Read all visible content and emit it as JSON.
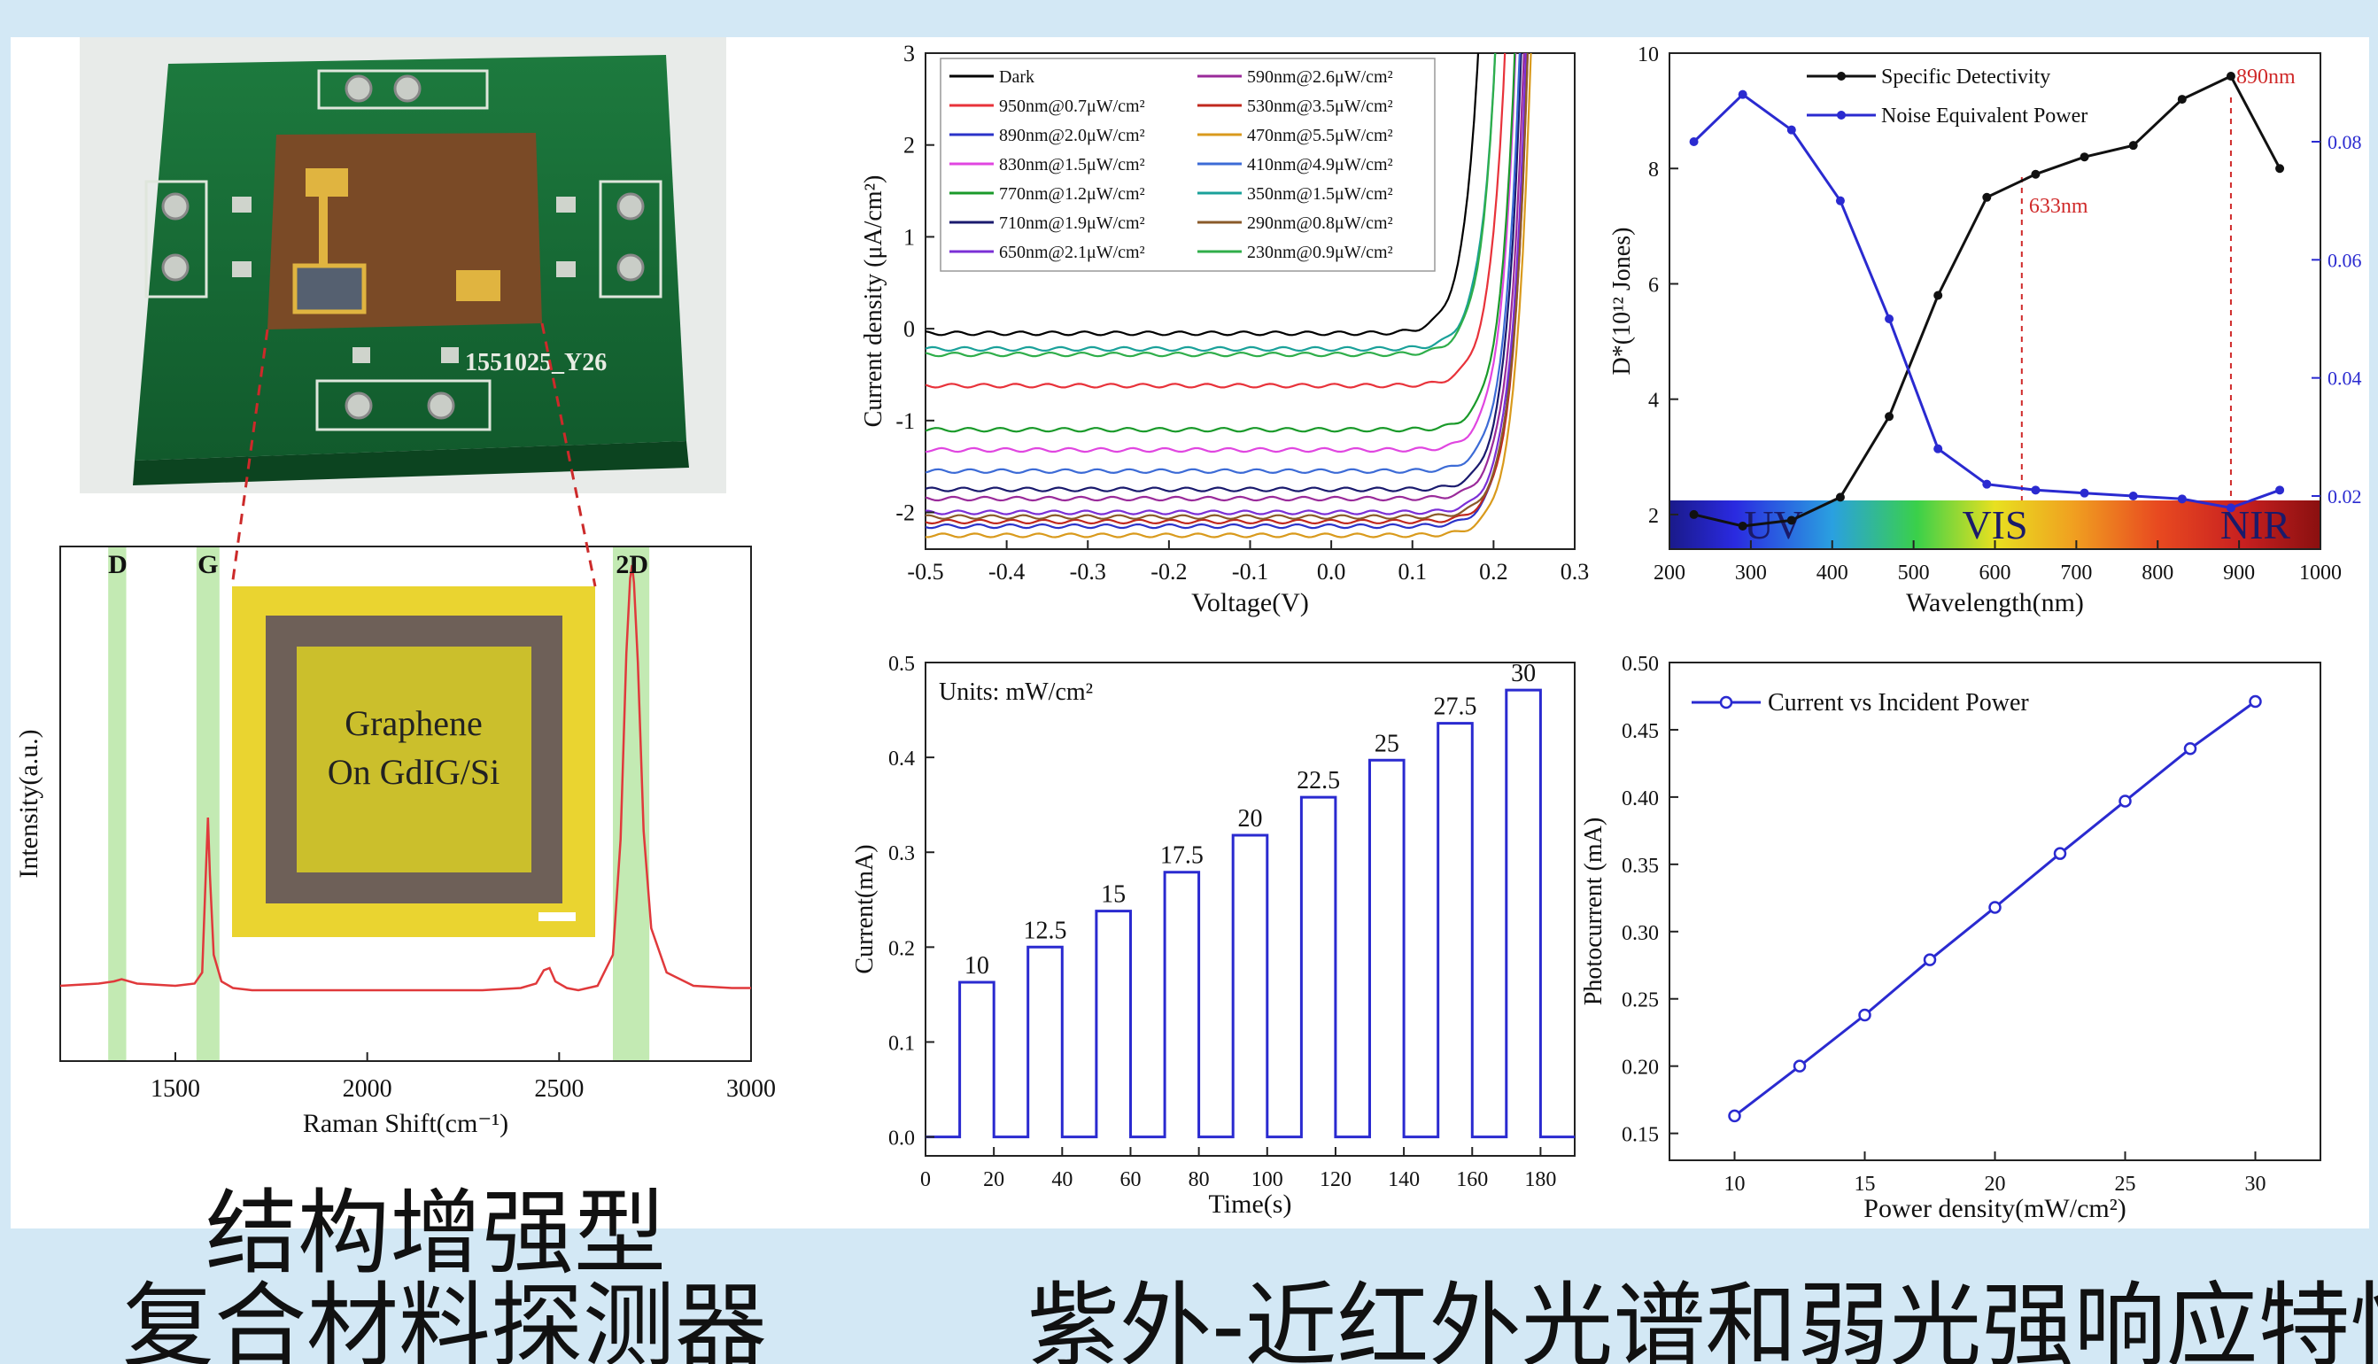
{
  "captions": {
    "left_line1": "结构增强型",
    "left_line2": "复合材料探测器",
    "right": "紫外-近红外光谱和弱光强响应特性"
  },
  "device_photo": {
    "board_label": "1551025_Y26"
  },
  "raman_chart": {
    "chart_data": {
      "type": "line",
      "xlabel": "Raman Shift(cm⁻¹)",
      "ylabel": "Intensity(a.u.)",
      "xlim": [
        1200,
        3000
      ],
      "xticks": [
        1500,
        2000,
        2500,
        3000
      ],
      "peak_labels": [
        {
          "label": "D",
          "x": 1350
        },
        {
          "label": "G",
          "x": 1585
        },
        {
          "label": "2D",
          "x": 2690
        }
      ],
      "series": [
        {
          "color": "#e0393b",
          "x": [
            1200,
            1300,
            1340,
            1360,
            1400,
            1500,
            1550,
            1570,
            1580,
            1585,
            1590,
            1600,
            1620,
            1650,
            1700,
            1800,
            1900,
            2000,
            2100,
            2200,
            2300,
            2400,
            2440,
            2460,
            2475,
            2490,
            2520,
            2550,
            2600,
            2640,
            2660,
            2675,
            2685,
            2690,
            2695,
            2705,
            2720,
            2740,
            2780,
            2850,
            2950,
            3000
          ],
          "y": [
            0.05,
            0.055,
            0.06,
            0.065,
            0.055,
            0.05,
            0.055,
            0.08,
            0.32,
            0.43,
            0.3,
            0.12,
            0.06,
            0.045,
            0.04,
            0.04,
            0.04,
            0.04,
            0.04,
            0.04,
            0.04,
            0.045,
            0.055,
            0.085,
            0.09,
            0.06,
            0.045,
            0.04,
            0.05,
            0.12,
            0.38,
            0.8,
            0.97,
            1.0,
            0.96,
            0.78,
            0.4,
            0.18,
            0.08,
            0.05,
            0.045,
            0.045
          ]
        }
      ]
    },
    "inset": {
      "line1": "Graphene",
      "line2": "On GdIG/Si"
    }
  },
  "iv_chart": {
    "chart_data": {
      "type": "line",
      "xlabel": "Voltage(V)",
      "ylabel": "Current density (μA/cm²)",
      "xlim": [
        -0.5,
        0.3
      ],
      "ylim": [
        -2.4,
        3
      ],
      "xticks": [
        -0.5,
        -0.4,
        -0.3,
        -0.2,
        -0.1,
        0.0,
        0.1,
        0.2,
        0.3
      ],
      "yticks": [
        -2,
        -1,
        0,
        1,
        2,
        3
      ],
      "series": [
        {
          "name": "Dark",
          "color": "#000000",
          "base": -0.05,
          "v0": 0.18
        },
        {
          "name": "950nm@0.7μW/cm²",
          "color": "#e8323a",
          "base": -0.62,
          "v0": 0.21
        },
        {
          "name": "890nm@2.0μW/cm²",
          "color": "#2b33c9",
          "base": -2.15,
          "v0": 0.23
        },
        {
          "name": "830nm@1.5μW/cm²",
          "color": "#e046e0",
          "base": -1.32,
          "v0": 0.22
        },
        {
          "name": "770nm@1.2μW/cm²",
          "color": "#1a9a2a",
          "base": -1.1,
          "v0": 0.22
        },
        {
          "name": "710nm@1.9μW/cm²",
          "color": "#1a1a6e",
          "base": -1.75,
          "v0": 0.225
        },
        {
          "name": "650nm@2.1μW/cm²",
          "color": "#7b2fd6",
          "base": -2.0,
          "v0": 0.23
        },
        {
          "name": "590nm@2.6μW/cm²",
          "color": "#9a2a9a",
          "base": -1.85,
          "v0": 0.228
        },
        {
          "name": "530nm@3.5μW/cm²",
          "color": "#c0281e",
          "base": -2.1,
          "v0": 0.232
        },
        {
          "name": "470nm@5.5μW/cm²",
          "color": "#d99a1c",
          "base": -2.25,
          "v0": 0.235
        },
        {
          "name": "410nm@4.9μW/cm²",
          "color": "#3c6bd6",
          "base": -1.55,
          "v0": 0.224
        },
        {
          "name": "350nm@1.5μW/cm²",
          "color": "#1aa19a",
          "base": -0.22,
          "v0": 0.2
        },
        {
          "name": "290nm@0.8μW/cm²",
          "color": "#8a5a2a",
          "base": -2.05,
          "v0": 0.232
        },
        {
          "name": "230nm@0.9μW/cm²",
          "color": "#2fae4a",
          "base": -0.28,
          "v0": 0.2
        }
      ]
    }
  },
  "detectivity_chart": {
    "chart_data": {
      "type": "line",
      "xlabel": "Wavelength(nm)",
      "ylabel_left": "D*(10¹² Jones)",
      "xlim": [
        200,
        1000
      ],
      "ylim_left": [
        1.4,
        10
      ],
      "ylim_right": [
        0.011,
        0.095
      ],
      "xticks": [
        200,
        300,
        400,
        500,
        600,
        700,
        800,
        900,
        1000
      ],
      "yticks_left": [
        2,
        4,
        6,
        8,
        10
      ],
      "yticks_right": [
        0.02,
        0.04,
        0.06,
        0.08
      ],
      "x": [
        230,
        290,
        350,
        410,
        470,
        530,
        590,
        650,
        710,
        770,
        830,
        890,
        950
      ],
      "series": [
        {
          "name": "Specific Detectivity",
          "color": "#111111",
          "axis": "left",
          "values": [
            2.0,
            1.8,
            1.9,
            2.3,
            3.7,
            5.8,
            7.5,
            7.9,
            8.2,
            8.4,
            9.2,
            9.6,
            8.0
          ]
        },
        {
          "name": "Noise Equivalent Power",
          "color": "#2a2ad0",
          "axis": "right",
          "values": [
            0.08,
            0.088,
            0.082,
            0.07,
            0.05,
            0.028,
            0.022,
            0.021,
            0.0205,
            0.02,
            0.0195,
            0.018,
            0.021
          ]
        }
      ],
      "annotations": [
        {
          "label": "633nm",
          "x": 633
        },
        {
          "label": "890nm",
          "x": 890
        }
      ],
      "spectrum_labels": [
        "UV",
        "VIS",
        "NIR"
      ]
    }
  },
  "time_chart": {
    "chart_data": {
      "type": "line",
      "xlabel": "Time(s)",
      "ylabel": "Current(mA)",
      "note": "Units: mW/cm²",
      "xlim": [
        0,
        190
      ],
      "ylim": [
        -0.02,
        0.5
      ],
      "xticks": [
        0,
        20,
        40,
        60,
        80,
        100,
        120,
        140,
        160,
        180
      ],
      "yticks": [
        0.0,
        0.1,
        0.2,
        0.3,
        0.4,
        0.5
      ],
      "pulses": [
        {
          "on": 10,
          "off": 20,
          "value": 0.163,
          "label": "10"
        },
        {
          "on": 30,
          "off": 40,
          "value": 0.2,
          "label": "12.5"
        },
        {
          "on": 50,
          "off": 60,
          "value": 0.238,
          "label": "15"
        },
        {
          "on": 70,
          "off": 80,
          "value": 0.279,
          "label": "17.5"
        },
        {
          "on": 90,
          "off": 100,
          "value": 0.318,
          "label": "20"
        },
        {
          "on": 110,
          "off": 120,
          "value": 0.358,
          "label": "22.5"
        },
        {
          "on": 130,
          "off": 140,
          "value": 0.397,
          "label": "25"
        },
        {
          "on": 150,
          "off": 160,
          "value": 0.436,
          "label": "27.5"
        },
        {
          "on": 170,
          "off": 180,
          "value": 0.471,
          "label": "30"
        }
      ]
    }
  },
  "photocurrent_chart": {
    "chart_data": {
      "type": "line",
      "xlabel": "Power density(mW/cm²)",
      "ylabel": "Photocurrent (mA)",
      "xlim": [
        7.5,
        32.5
      ],
      "ylim": [
        0.13,
        0.5
      ],
      "xticks": [
        10,
        15,
        20,
        25,
        30
      ],
      "yticks": [
        0.15,
        0.2,
        0.25,
        0.3,
        0.35,
        0.4,
        0.45,
        0.5
      ],
      "series": [
        {
          "name": "Current vs Incident Power",
          "color": "#2a2ad0",
          "x": [
            10,
            12.5,
            15,
            17.5,
            20,
            22.5,
            25,
            27.5,
            30
          ],
          "y": [
            0.163,
            0.2,
            0.238,
            0.279,
            0.318,
            0.358,
            0.397,
            0.436,
            0.471
          ]
        }
      ]
    }
  }
}
